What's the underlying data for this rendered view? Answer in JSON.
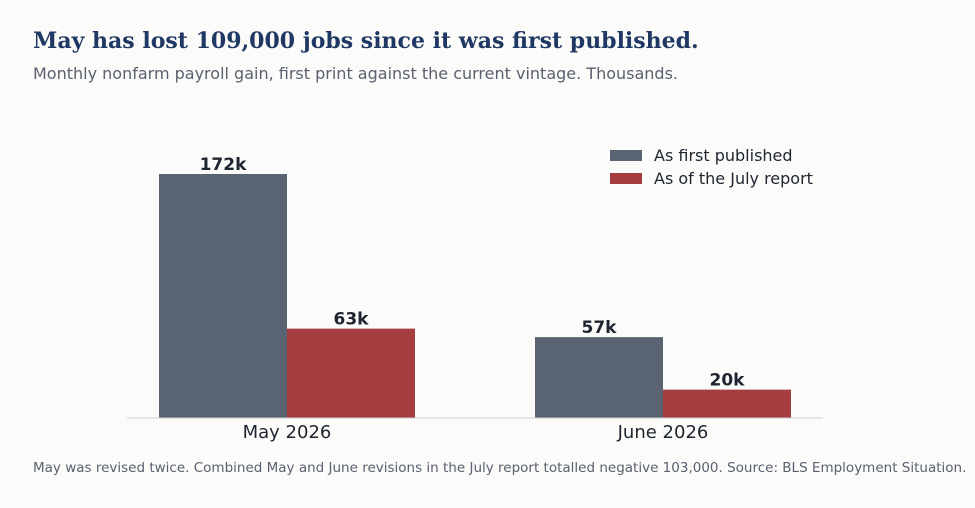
{
  "title": "May has lost 109,000 jobs since it was first published.",
  "subtitle": "Monthly nonfarm payroll gain, first print against the current vintage. Thousands.",
  "footnote": "May was revised twice. Combined May and June revisions in the July report totalled negative 103,000. Source: BLS Employment Situation.",
  "colors": {
    "first_published": "#5a6372",
    "july_report": "#a63d40",
    "title": "#1f3864",
    "text": "#1e2430",
    "muted": "#5a6070",
    "baseline": "#cccccc"
  },
  "chart_data": {
    "type": "bar",
    "title": "May has lost 109,000 jobs since it was first published.",
    "subtitle": "Monthly nonfarm payroll gain, first print against the current vintage. Thousands.",
    "xlabel": "",
    "ylabel": "",
    "categories": [
      "May 2026",
      "June 2026"
    ],
    "series": [
      {
        "name": "As first published",
        "values": [
          172,
          57
        ],
        "labels": [
          "172k",
          "57k"
        ],
        "color": "#5a6372"
      },
      {
        "name": "As of the July report",
        "values": [
          63,
          20
        ],
        "labels": [
          "63k",
          "20k"
        ],
        "color": "#a63d40"
      }
    ],
    "ylim": [
      0,
      200
    ],
    "grid": false,
    "y_axis_shown": false,
    "legend_position": "top-right"
  }
}
